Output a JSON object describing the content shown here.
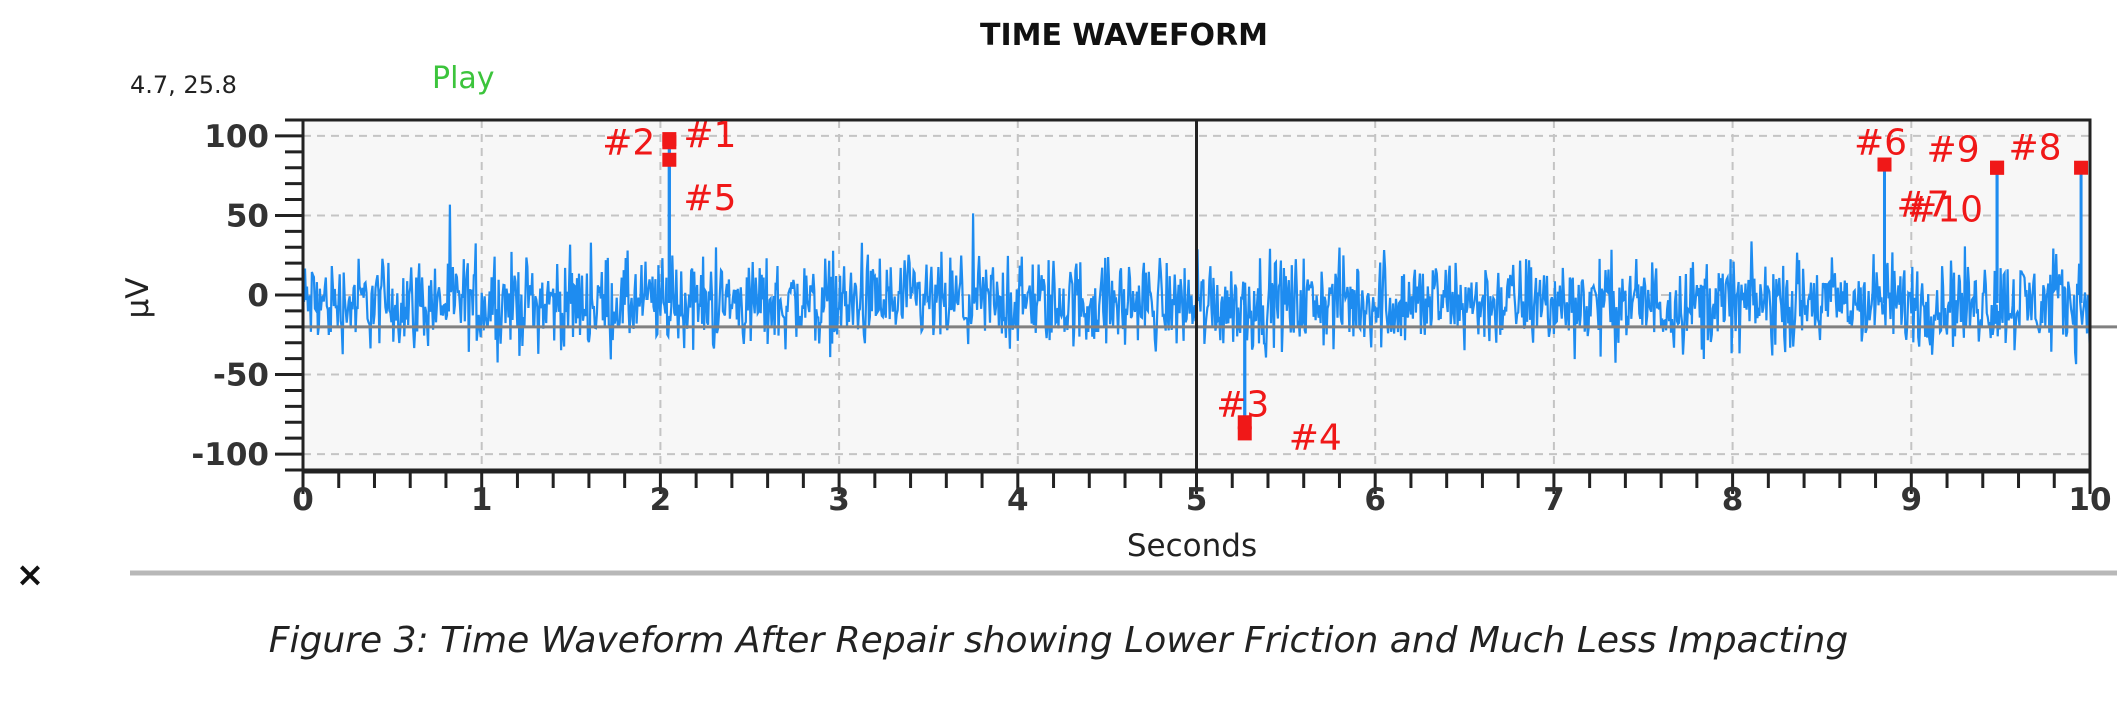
{
  "chart_data": {
    "type": "line",
    "title": "TIME WAVEFORM",
    "xlabel": "Seconds",
    "ylabel": "µV",
    "xlim": [
      0,
      10
    ],
    "ylim": [
      -110,
      110
    ],
    "x_ticks": [
      0,
      1,
      2,
      3,
      4,
      5,
      6,
      7,
      8,
      9,
      10
    ],
    "y_ticks": [
      100,
      50,
      0,
      -50,
      -100
    ],
    "grid": true,
    "cursor_readout": "4.7, 25.8",
    "play_label": "Play",
    "reference_line_y": -20,
    "vertical_cursor_x": 5,
    "series": [
      {
        "color": "#1e8cf0",
        "baseline": -5,
        "noise_amplitude": 42,
        "sample_rate_hz": 180
      }
    ],
    "markers": [
      {
        "label": "#1",
        "x": 2.05,
        "y": 98
      },
      {
        "label": "#2",
        "x": 2.05,
        "y": 96
      },
      {
        "label": "#3",
        "x": 5.27,
        "y": -80
      },
      {
        "label": "#4",
        "x": 5.27,
        "y": -87
      },
      {
        "label": "#5",
        "x": 2.05,
        "y": 85
      },
      {
        "label": "#6",
        "x": 8.85,
        "y": 82
      },
      {
        "label": "#7",
        "x": 8.85,
        "y": 82
      },
      {
        "label": "#8",
        "x": 9.95,
        "y": 80
      },
      {
        "label": "#9",
        "x": 9.48,
        "y": 80
      },
      {
        "label": "#10",
        "x": 9.48,
        "y": 80
      }
    ]
  },
  "close_label": "×",
  "caption": "Figure 3: Time Waveform After Repair showing Lower Friction and Much Less Impacting",
  "colors": {
    "marker": "#f01818",
    "waveform": "#1e8cf0",
    "reference": "#808080"
  }
}
